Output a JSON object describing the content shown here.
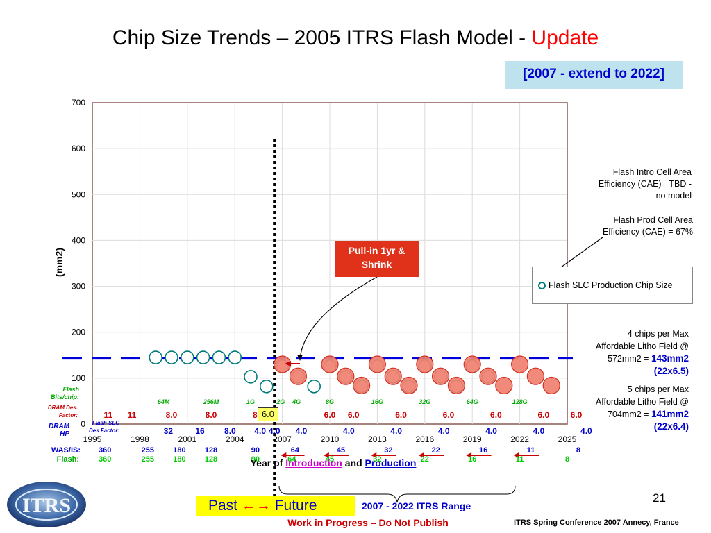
{
  "title_prefix": "Chip Size Trends – 2005 ITRS Flash Model - ",
  "title_highlight": "Update",
  "subtitle": "[2007 - extend to 2022]",
  "slide_number": "21",
  "past_future": {
    "past": "Past ",
    "arrows": "←→",
    "future": " Future"
  },
  "range_label": "2007 - 2022 ITRS Range",
  "work_in_progress": "Work in Progress – Do Not Publish",
  "footer": "ITRS Spring Conference 2007    Annecy, France",
  "logo_text": "ITRS",
  "callout": "Pull-in 1yr & Shrink",
  "legend_label": "Flash SLC Production Chip Size",
  "x_axis_title": {
    "pre": "Year of ",
    "intro": "Introduction",
    "and": " and ",
    "prod": "Production"
  },
  "notes": {
    "cae_intro": [
      "Flash Intro Cell Area",
      "Efficiency (CAE) =TBD -",
      "no model"
    ],
    "cae_prod": [
      "Flash Prod Cell Area",
      "Efficiency (CAE) = 67%"
    ],
    "four_chips": [
      "4 chips per Max",
      "Affordable Litho Field @",
      "572mm2 = "
    ],
    "four_chips_value": "143mm2",
    "four_chips_dims": "(22x6.5)",
    "five_chips": [
      "5 chips per Max",
      "Affordable Litho Field @",
      "704mm2 = "
    ],
    "five_chips_value": "141mm2",
    "five_chips_dims": "(22x6.4)"
  },
  "boxed_value": "6.0",
  "chart_data": {
    "type": "scatter",
    "ylabel": "(mm2)",
    "ylim": [
      0,
      700
    ],
    "yticks": [
      "0",
      "100",
      "200",
      "300",
      "400",
      "500",
      "600",
      "700"
    ],
    "xlim": [
      1995,
      2025
    ],
    "xticks": [
      "1995",
      "1998",
      "2001",
      "2004",
      "2007",
      "2010",
      "2013",
      "2016",
      "2019",
      "2022",
      "2025"
    ],
    "grid": true,
    "legend_position": "right",
    "present_divider_year": 2006.5,
    "reference_line_value": 143,
    "colors": {
      "production_marker": "#007b7b",
      "intro_marker_fill": "#f08070",
      "intro_marker_stroke": "#d03020",
      "reference_line": "#0000dd",
      "divider": "#000000"
    },
    "series": [
      {
        "name": "Flash SLC Production Chip Size",
        "x": [
          1999,
          2000,
          2001,
          2002,
          2003,
          2004,
          2005,
          2006,
          2007,
          2008,
          2009,
          2010,
          2011,
          2012,
          2013,
          2014,
          2015,
          2016,
          2017,
          2018,
          2019,
          2020
        ],
        "y": [
          145,
          145,
          145,
          145,
          145,
          145,
          103,
          82,
          126,
          103,
          82,
          126,
          103,
          82,
          126,
          103,
          82,
          126,
          103,
          82,
          126,
          103
        ]
      },
      {
        "x": [
          2007,
          2008,
          2010,
          2011,
          2012,
          2013,
          2014,
          2015,
          2016,
          2017,
          2018,
          2019,
          2020,
          2021,
          2022,
          2023,
          2024
        ],
        "y": [
          130,
          104,
          130,
          104,
          84,
          130,
          104,
          84,
          130,
          104,
          84,
          130,
          104,
          84,
          130,
          104,
          84
        ]
      }
    ],
    "table": {
      "flash_bits_label": "Flash\nBits/chip:",
      "flash_bits": [
        {
          "year": 1999.5,
          "v": "64M"
        },
        {
          "year": 2002.5,
          "v": "256M"
        },
        {
          "year": 2005,
          "v": "1G"
        },
        {
          "year": 2006.9,
          "v": "2G"
        },
        {
          "year": 2007.9,
          "v": "4G"
        },
        {
          "year": 2010.0,
          "v": "8G"
        },
        {
          "year": 2013.0,
          "v": "16G"
        },
        {
          "year": 2016.0,
          "v": "32G"
        },
        {
          "year": 2019.0,
          "v": "64G"
        },
        {
          "year": 2022.0,
          "v": "128G"
        }
      ],
      "dram_des_label": "DRAM Des.\nFactor:",
      "dram_des": [
        {
          "year": 1996,
          "v": "11"
        },
        {
          "year": 1997.5,
          "v": "11"
        },
        {
          "year": 2000,
          "v": "8.0"
        },
        {
          "year": 2002.5,
          "v": "8.0"
        },
        {
          "year": 2005.5,
          "v": "8.0"
        },
        {
          "year": 2010,
          "v": "6.0"
        },
        {
          "year": 2011.5,
          "v": "6.0"
        },
        {
          "year": 2014.5,
          "v": "6.0"
        },
        {
          "year": 2017.5,
          "v": "6.0"
        },
        {
          "year": 2020.5,
          "v": "6.0"
        },
        {
          "year": 2023.5,
          "v": "6.0"
        },
        {
          "year": 2026.5,
          "v": "6.0"
        }
      ],
      "flash_slc_label": "Flash SLC\nDes Factor:",
      "flash_slc": [
        {
          "year": 1999.8,
          "v": "32"
        },
        {
          "year": 2001.8,
          "v": "16"
        },
        {
          "year": 2003.7,
          "v": "8.0"
        },
        {
          "year": 2005.6,
          "v": "4.0"
        },
        {
          "year": 2006.5,
          "v": "4.0"
        },
        {
          "year": 2008.2,
          "v": "4.0"
        },
        {
          "year": 2011.2,
          "v": "4.0"
        },
        {
          "year": 2014.2,
          "v": "4.0"
        },
        {
          "year": 2017.2,
          "v": "4.0"
        },
        {
          "year": 2020.2,
          "v": "4.0"
        },
        {
          "year": 2023.2,
          "v": "4.0"
        },
        {
          "year": 2026.2,
          "v": "4.0"
        }
      ],
      "dram_hp_label": "DRAM\nHP",
      "was_label": "WAS/IS:",
      "was": [
        {
          "year": 1995.8,
          "v": "360"
        },
        {
          "year": 1998.5,
          "v": "255"
        },
        {
          "year": 2000.5,
          "v": "180"
        },
        {
          "year": 2002.5,
          "v": "128"
        },
        {
          "year": 2005.3,
          "v": "90"
        },
        {
          "year": 2007.8,
          "v": "64"
        },
        {
          "year": 2010.7,
          "v": "45"
        },
        {
          "year": 2013.7,
          "v": "32"
        },
        {
          "year": 2016.7,
          "v": "22"
        },
        {
          "year": 2019.7,
          "v": "16"
        },
        {
          "year": 2022.7,
          "v": "11"
        },
        {
          "year": 2025.7,
          "v": "8"
        }
      ],
      "flash_hp_label": "Flash:",
      "flash_hp": [
        {
          "year": 1995.8,
          "v": "360"
        },
        {
          "year": 1998.5,
          "v": "255"
        },
        {
          "year": 2000.5,
          "v": "180"
        },
        {
          "year": 2002.5,
          "v": "128"
        },
        {
          "year": 2005.3,
          "v": "90"
        },
        {
          "year": 2007.6,
          "v": "64"
        },
        {
          "year": 2010.0,
          "v": "45"
        },
        {
          "year": 2013.0,
          "v": "32"
        },
        {
          "year": 2016.0,
          "v": "22"
        },
        {
          "year": 2019.0,
          "v": "16"
        },
        {
          "year": 2022.0,
          "v": "11"
        },
        {
          "year": 2025.0,
          "v": "8"
        }
      ]
    }
  }
}
